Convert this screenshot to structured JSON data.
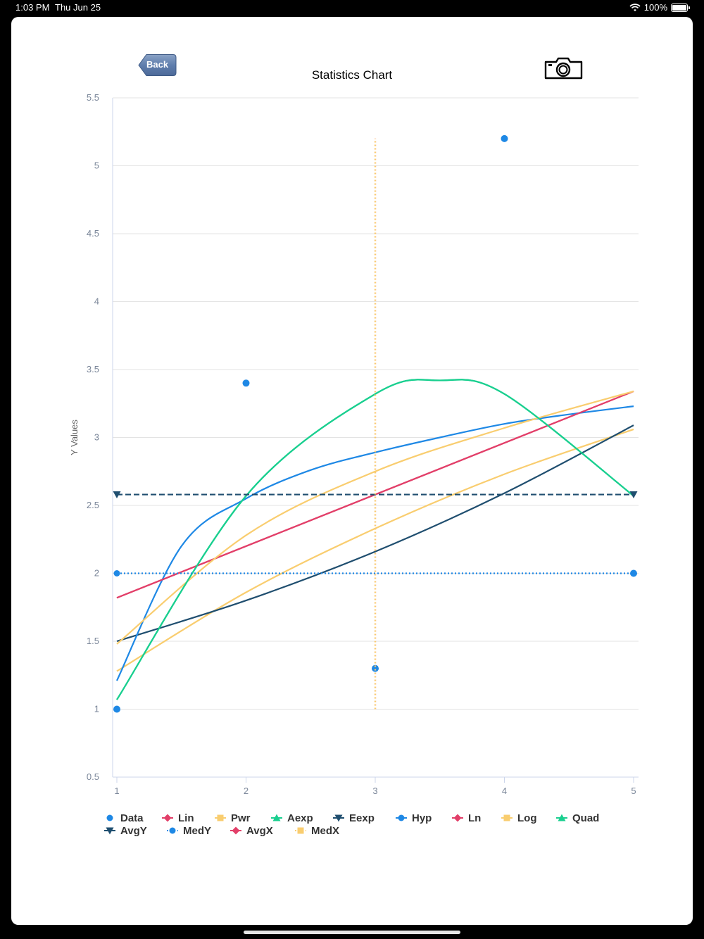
{
  "status_bar": {
    "time": "1:03 PM",
    "date": "Thu Jun 25",
    "battery": "100%"
  },
  "header": {
    "back_label": "Back",
    "camera_icon": "camera-icon"
  },
  "chart_data": {
    "type": "line",
    "title": "Statistics Chart",
    "xlabel": "",
    "ylabel": "Y Values",
    "xlim": [
      1,
      5
    ],
    "ylim": [
      0.5,
      5.5
    ],
    "x_ticks": [
      "1",
      "2",
      "3",
      "4",
      "5"
    ],
    "y_ticks": [
      "0.5",
      "1",
      "1.5",
      "2",
      "2.5",
      "3",
      "3.5",
      "4",
      "4.5",
      "5",
      "5.5"
    ],
    "grid": true,
    "legend_position": "bottom",
    "colors": {
      "blue": "#1e88e5",
      "red": "#e23f69",
      "yellow": "#f9cd6f",
      "green": "#19cf8f",
      "navy": "#1f4e6f",
      "orange": "#ff6a00"
    },
    "series": [
      {
        "name": "Data",
        "kind": "scatter",
        "color": "#1e88e5",
        "points": [
          [
            1,
            1.0
          ],
          [
            2,
            3.4
          ],
          [
            3,
            1.3
          ],
          [
            4,
            5.2
          ],
          [
            5,
            2.0
          ]
        ]
      },
      {
        "name": "Lin",
        "kind": "line",
        "color": "#e23f69",
        "points": [
          [
            1,
            1.82
          ],
          [
            5,
            3.34
          ]
        ]
      },
      {
        "name": "Pwr",
        "kind": "line",
        "color": "#f9cd6f",
        "points": [
          [
            1,
            1.28
          ],
          [
            2,
            1.86
          ],
          [
            3,
            2.33
          ],
          [
            4,
            2.73
          ],
          [
            5,
            3.06
          ]
        ]
      },
      {
        "name": "Aexp",
        "kind": "line",
        "color": "#19cf8f",
        "points": [
          [
            1,
            1.07
          ],
          [
            2,
            2.57
          ],
          [
            3,
            3.32
          ],
          [
            3.5,
            3.42
          ],
          [
            4,
            3.32
          ],
          [
            5,
            2.57
          ]
        ]
      },
      {
        "name": "Eexp",
        "kind": "line",
        "color": "#1f4e6f",
        "points": [
          [
            1,
            1.5
          ],
          [
            2,
            1.8
          ],
          [
            3,
            2.16
          ],
          [
            4,
            2.59
          ],
          [
            5,
            3.09
          ]
        ]
      },
      {
        "name": "Hyp",
        "kind": "line",
        "color": "#1e88e5",
        "points": [
          [
            1,
            1.21
          ],
          [
            1.5,
            2.2
          ],
          [
            2,
            2.55
          ],
          [
            2.5,
            2.76
          ],
          [
            3,
            2.89
          ],
          [
            3.5,
            3.0
          ],
          [
            4,
            3.1
          ],
          [
            4.5,
            3.17
          ],
          [
            5,
            3.23
          ]
        ]
      },
      {
        "name": "Ln",
        "kind": "line",
        "color": "#e23f69",
        "points": [
          [
            1,
            1.82
          ],
          [
            5,
            3.34
          ]
        ]
      },
      {
        "name": "Log",
        "kind": "line",
        "color": "#f9cd6f",
        "points": [
          [
            1,
            1.48
          ],
          [
            2,
            2.28
          ],
          [
            3,
            2.75
          ],
          [
            4,
            3.07
          ],
          [
            5,
            3.34
          ]
        ]
      },
      {
        "name": "Quad",
        "kind": "line",
        "color": "#19cf8f",
        "points": [
          [
            1,
            1.07
          ],
          [
            2,
            2.57
          ],
          [
            3,
            3.32
          ],
          [
            3.5,
            3.42
          ],
          [
            4,
            3.32
          ],
          [
            5,
            2.57
          ]
        ]
      },
      {
        "name": "AvgY",
        "kind": "hline",
        "color": "#1f4e6f",
        "dash": "8,4",
        "marker": "triangle-down",
        "points": [
          [
            1,
            2.58
          ],
          [
            5,
            2.58
          ]
        ]
      },
      {
        "name": "MedY",
        "kind": "hline",
        "color": "#1e88e5",
        "dash": "2,3",
        "marker": "circle",
        "points": [
          [
            1,
            2.0
          ],
          [
            5,
            2.0
          ]
        ]
      },
      {
        "name": "AvgX",
        "kind": "vline",
        "color": "#e23f69",
        "dash": "2,3",
        "points": [
          [
            3,
            1.0
          ],
          [
            3,
            5.2
          ]
        ]
      },
      {
        "name": "MedX",
        "kind": "vline",
        "color": "#f9cd6f",
        "dash": "2,3",
        "points": [
          [
            3,
            1.0
          ],
          [
            3,
            5.2
          ]
        ]
      }
    ],
    "legend": [
      {
        "name": "Data",
        "marker": "circle",
        "line": false,
        "color": "#1e88e5"
      },
      {
        "name": "Lin",
        "marker": "diamond",
        "line": true,
        "color": "#e23f69"
      },
      {
        "name": "Pwr",
        "marker": "square",
        "line": true,
        "color": "#f9cd6f"
      },
      {
        "name": "Aexp",
        "marker": "triangle",
        "line": true,
        "color": "#19cf8f"
      },
      {
        "name": "Eexp",
        "marker": "triangle-down",
        "line": true,
        "color": "#1f4e6f"
      },
      {
        "name": "Hyp",
        "marker": "circle",
        "line": true,
        "color": "#1e88e5"
      },
      {
        "name": "Ln",
        "marker": "diamond",
        "line": true,
        "color": "#e23f69"
      },
      {
        "name": "Log",
        "marker": "square",
        "line": true,
        "color": "#f9cd6f"
      },
      {
        "name": "Quad",
        "marker": "triangle",
        "line": true,
        "color": "#19cf8f"
      },
      {
        "name": "AvgY",
        "marker": "triangle-down",
        "line": true,
        "color": "#1f4e6f"
      },
      {
        "name": "MedY",
        "marker": "circle",
        "line": "dotted",
        "color": "#1e88e5"
      },
      {
        "name": "AvgX",
        "marker": "diamond",
        "line": true,
        "color": "#e23f69"
      },
      {
        "name": "MedX",
        "marker": "square",
        "line": "dotted",
        "color": "#f9cd6f"
      }
    ]
  }
}
